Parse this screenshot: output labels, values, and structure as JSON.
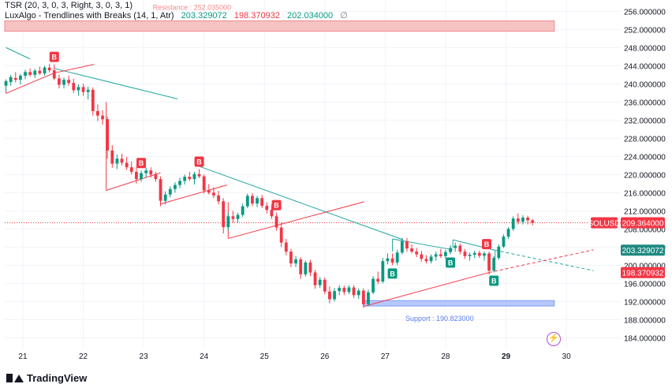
{
  "legend": {
    "tsr_name": "TSR (20, 3, 0, 3, Right, 3, 0, 3, 1)",
    "lux_name": "LuxAlgo - Trendlines with Breaks (14, 1, Atr)",
    "lux_v1": "203.329072",
    "lux_v2": "198.370932",
    "lux_v3": "202.034000",
    "lux_eps": "∅"
  },
  "brand": {
    "name": "TradingView"
  },
  "zones": {
    "resistance_label": "Resistance : 252.035000",
    "support_label": "Support : 190.823000"
  },
  "price_tags": {
    "symbol": "SOLUSD",
    "last": "209.364000",
    "upper_trend": "203.329072",
    "lower_trend": "198.370932"
  },
  "chart_data": {
    "type": "candlestick",
    "symbol": "SOLUSD",
    "x_ticks": [
      "21",
      "22",
      "23",
      "24",
      "25",
      "26",
      "27",
      "28",
      "29",
      "30"
    ],
    "y_ticks": [
      "256.000000",
      "252.000000",
      "248.000000",
      "244.000000",
      "240.000000",
      "236.000000",
      "232.000000",
      "228.000000",
      "224.000000",
      "220.000000",
      "216.000000",
      "212.000000",
      "208.000000",
      "204.000000",
      "200.000000",
      "196.000000",
      "192.000000",
      "188.000000",
      "184.000000"
    ],
    "ylim": [
      181.8,
      258.5
    ],
    "xlim": [
      20.7,
      30.9
    ],
    "last_price": 209.364,
    "resistance": {
      "low": 251.6,
      "high": 253.9,
      "value": 252.035
    },
    "support": {
      "low": 191.0,
      "high": 192.2,
      "value": 190.823
    },
    "candles": [
      {
        "d": 20.72,
        "o": 239.6,
        "h": 241.0,
        "l": 238.4,
        "c": 240.6
      },
      {
        "d": 20.8,
        "o": 240.4,
        "h": 242.0,
        "l": 239.6,
        "c": 241.5
      },
      {
        "d": 20.88,
        "o": 241.3,
        "h": 242.6,
        "l": 240.3,
        "c": 240.9
      },
      {
        "d": 20.96,
        "o": 240.9,
        "h": 242.2,
        "l": 239.9,
        "c": 241.8
      },
      {
        "d": 21.04,
        "o": 241.8,
        "h": 243.1,
        "l": 241.0,
        "c": 242.6
      },
      {
        "d": 21.12,
        "o": 242.6,
        "h": 243.4,
        "l": 241.6,
        "c": 242.0
      },
      {
        "d": 21.2,
        "o": 242.0,
        "h": 243.3,
        "l": 241.3,
        "c": 242.9
      },
      {
        "d": 21.28,
        "o": 242.9,
        "h": 243.8,
        "l": 242.0,
        "c": 242.3
      },
      {
        "d": 21.36,
        "o": 242.3,
        "h": 244.0,
        "l": 241.8,
        "c": 243.6
      },
      {
        "d": 21.44,
        "o": 243.6,
        "h": 244.4,
        "l": 242.5,
        "c": 243.0
      },
      {
        "d": 21.52,
        "o": 243.0,
        "h": 244.3,
        "l": 240.8,
        "c": 241.2
      },
      {
        "d": 21.6,
        "o": 241.2,
        "h": 242.0,
        "l": 239.0,
        "c": 239.8
      },
      {
        "d": 21.68,
        "o": 239.8,
        "h": 241.4,
        "l": 239.0,
        "c": 240.9
      },
      {
        "d": 21.76,
        "o": 240.9,
        "h": 241.8,
        "l": 239.6,
        "c": 240.2
      },
      {
        "d": 21.84,
        "o": 240.2,
        "h": 241.1,
        "l": 238.0,
        "c": 238.6
      },
      {
        "d": 21.92,
        "o": 238.6,
        "h": 239.9,
        "l": 237.4,
        "c": 239.3
      },
      {
        "d": 22.0,
        "o": 239.3,
        "h": 240.0,
        "l": 237.4,
        "c": 238.2
      },
      {
        "d": 22.08,
        "o": 238.2,
        "h": 239.4,
        "l": 236.6,
        "c": 238.7
      },
      {
        "d": 22.16,
        "o": 238.7,
        "h": 239.2,
        "l": 233.0,
        "c": 234.0
      },
      {
        "d": 22.24,
        "o": 234.0,
        "h": 235.5,
        "l": 231.8,
        "c": 233.0
      },
      {
        "d": 22.32,
        "o": 233.0,
        "h": 234.2,
        "l": 231.0,
        "c": 232.2
      },
      {
        "d": 22.4,
        "o": 232.2,
        "h": 232.8,
        "l": 223.5,
        "c": 225.3
      },
      {
        "d": 22.48,
        "o": 225.3,
        "h": 226.5,
        "l": 221.5,
        "c": 222.4
      },
      {
        "d": 22.56,
        "o": 222.4,
        "h": 224.4,
        "l": 221.2,
        "c": 223.5
      },
      {
        "d": 22.64,
        "o": 223.5,
        "h": 224.6,
        "l": 222.0,
        "c": 222.6
      },
      {
        "d": 22.72,
        "o": 222.6,
        "h": 223.9,
        "l": 221.0,
        "c": 221.6
      },
      {
        "d": 22.8,
        "o": 221.6,
        "h": 222.9,
        "l": 220.0,
        "c": 220.6
      },
      {
        "d": 22.88,
        "o": 220.6,
        "h": 221.6,
        "l": 218.0,
        "c": 219.0
      },
      {
        "d": 22.96,
        "o": 219.0,
        "h": 220.9,
        "l": 218.4,
        "c": 220.3
      },
      {
        "d": 23.04,
        "o": 220.3,
        "h": 221.5,
        "l": 219.4,
        "c": 220.9
      },
      {
        "d": 23.12,
        "o": 220.9,
        "h": 221.6,
        "l": 219.3,
        "c": 220.0
      },
      {
        "d": 23.2,
        "o": 220.0,
        "h": 220.6,
        "l": 218.4,
        "c": 219.0
      },
      {
        "d": 23.28,
        "o": 219.0,
        "h": 219.6,
        "l": 213.0,
        "c": 214.2
      },
      {
        "d": 23.36,
        "o": 214.2,
        "h": 216.3,
        "l": 213.4,
        "c": 215.6
      },
      {
        "d": 23.44,
        "o": 215.6,
        "h": 217.4,
        "l": 215.0,
        "c": 216.8
      },
      {
        "d": 23.52,
        "o": 216.8,
        "h": 218.3,
        "l": 216.0,
        "c": 217.7
      },
      {
        "d": 23.6,
        "o": 217.7,
        "h": 219.3,
        "l": 217.0,
        "c": 218.6
      },
      {
        "d": 23.68,
        "o": 218.6,
        "h": 220.0,
        "l": 217.8,
        "c": 219.5
      },
      {
        "d": 23.76,
        "o": 219.5,
        "h": 220.6,
        "l": 218.6,
        "c": 219.0
      },
      {
        "d": 23.84,
        "o": 219.0,
        "h": 220.6,
        "l": 217.8,
        "c": 220.1
      },
      {
        "d": 23.92,
        "o": 220.1,
        "h": 221.2,
        "l": 219.2,
        "c": 219.6
      },
      {
        "d": 24.0,
        "o": 219.6,
        "h": 220.0,
        "l": 215.8,
        "c": 216.5
      },
      {
        "d": 24.08,
        "o": 216.5,
        "h": 217.9,
        "l": 215.6,
        "c": 216.0
      },
      {
        "d": 24.16,
        "o": 216.0,
        "h": 217.2,
        "l": 214.8,
        "c": 215.4
      },
      {
        "d": 24.24,
        "o": 215.4,
        "h": 216.4,
        "l": 213.4,
        "c": 214.1
      },
      {
        "d": 24.32,
        "o": 214.1,
        "h": 214.8,
        "l": 207.0,
        "c": 208.4
      },
      {
        "d": 24.4,
        "o": 208.4,
        "h": 211.6,
        "l": 207.6,
        "c": 210.8
      },
      {
        "d": 24.48,
        "o": 210.8,
        "h": 212.0,
        "l": 209.4,
        "c": 210.2
      },
      {
        "d": 24.56,
        "o": 210.2,
        "h": 211.6,
        "l": 209.4,
        "c": 211.1
      },
      {
        "d": 24.64,
        "o": 211.1,
        "h": 213.6,
        "l": 210.6,
        "c": 213.0
      },
      {
        "d": 24.72,
        "o": 213.0,
        "h": 215.8,
        "l": 212.6,
        "c": 215.3
      },
      {
        "d": 24.8,
        "o": 215.3,
        "h": 215.9,
        "l": 213.0,
        "c": 213.6
      },
      {
        "d": 24.88,
        "o": 213.6,
        "h": 215.3,
        "l": 212.8,
        "c": 214.8
      },
      {
        "d": 24.96,
        "o": 214.8,
        "h": 215.5,
        "l": 212.6,
        "c": 213.1
      },
      {
        "d": 25.04,
        "o": 213.1,
        "h": 213.9,
        "l": 211.4,
        "c": 212.2
      },
      {
        "d": 25.12,
        "o": 212.2,
        "h": 213.4,
        "l": 210.2,
        "c": 210.8
      },
      {
        "d": 25.2,
        "o": 210.8,
        "h": 211.6,
        "l": 207.6,
        "c": 208.3
      },
      {
        "d": 25.28,
        "o": 208.3,
        "h": 209.4,
        "l": 204.0,
        "c": 205.0
      },
      {
        "d": 25.36,
        "o": 205.0,
        "h": 205.8,
        "l": 202.2,
        "c": 203.0
      },
      {
        "d": 25.44,
        "o": 203.0,
        "h": 203.6,
        "l": 199.6,
        "c": 200.4
      },
      {
        "d": 25.52,
        "o": 200.4,
        "h": 202.0,
        "l": 199.6,
        "c": 201.3
      },
      {
        "d": 25.6,
        "o": 201.3,
        "h": 201.8,
        "l": 197.0,
        "c": 198.0
      },
      {
        "d": 25.68,
        "o": 198.0,
        "h": 201.0,
        "l": 197.5,
        "c": 200.6
      },
      {
        "d": 25.76,
        "o": 200.6,
        "h": 201.2,
        "l": 197.6,
        "c": 198.4
      },
      {
        "d": 25.84,
        "o": 198.4,
        "h": 199.0,
        "l": 194.8,
        "c": 195.6
      },
      {
        "d": 25.92,
        "o": 195.6,
        "h": 197.4,
        "l": 195.0,
        "c": 196.8
      },
      {
        "d": 26.0,
        "o": 196.8,
        "h": 197.3,
        "l": 193.6,
        "c": 194.2
      },
      {
        "d": 26.08,
        "o": 194.2,
        "h": 195.3,
        "l": 191.6,
        "c": 192.5
      },
      {
        "d": 26.16,
        "o": 192.5,
        "h": 195.0,
        "l": 192.0,
        "c": 194.3
      },
      {
        "d": 26.24,
        "o": 194.3,
        "h": 195.6,
        "l": 193.4,
        "c": 195.0
      },
      {
        "d": 26.32,
        "o": 195.0,
        "h": 195.5,
        "l": 193.4,
        "c": 194.1
      },
      {
        "d": 26.4,
        "o": 194.1,
        "h": 195.6,
        "l": 193.6,
        "c": 195.1
      },
      {
        "d": 26.48,
        "o": 195.1,
        "h": 195.6,
        "l": 192.8,
        "c": 193.4
      },
      {
        "d": 26.56,
        "o": 193.4,
        "h": 194.9,
        "l": 192.6,
        "c": 194.4
      },
      {
        "d": 26.64,
        "o": 194.4,
        "h": 194.9,
        "l": 190.6,
        "c": 191.4
      },
      {
        "d": 26.72,
        "o": 191.4,
        "h": 194.6,
        "l": 191.0,
        "c": 194.0
      },
      {
        "d": 26.8,
        "o": 194.0,
        "h": 197.6,
        "l": 193.6,
        "c": 197.0
      },
      {
        "d": 26.88,
        "o": 197.0,
        "h": 198.6,
        "l": 195.8,
        "c": 196.4
      },
      {
        "d": 26.96,
        "o": 196.4,
        "h": 201.6,
        "l": 196.0,
        "c": 200.9
      },
      {
        "d": 27.04,
        "o": 200.9,
        "h": 202.6,
        "l": 200.2,
        "c": 201.5
      },
      {
        "d": 27.12,
        "o": 201.5,
        "h": 202.6,
        "l": 200.0,
        "c": 200.6
      },
      {
        "d": 27.2,
        "o": 200.6,
        "h": 203.4,
        "l": 200.0,
        "c": 202.8
      },
      {
        "d": 27.28,
        "o": 202.8,
        "h": 206.0,
        "l": 202.4,
        "c": 205.3
      },
      {
        "d": 27.36,
        "o": 205.3,
        "h": 206.0,
        "l": 203.0,
        "c": 203.7
      },
      {
        "d": 27.44,
        "o": 203.7,
        "h": 204.6,
        "l": 202.6,
        "c": 203.0
      },
      {
        "d": 27.52,
        "o": 203.0,
        "h": 203.8,
        "l": 201.8,
        "c": 202.4
      },
      {
        "d": 27.6,
        "o": 202.4,
        "h": 203.2,
        "l": 200.8,
        "c": 201.4
      },
      {
        "d": 27.68,
        "o": 201.4,
        "h": 202.2,
        "l": 200.4,
        "c": 200.9
      },
      {
        "d": 27.76,
        "o": 200.9,
        "h": 202.4,
        "l": 200.4,
        "c": 201.9
      },
      {
        "d": 27.84,
        "o": 201.9,
        "h": 203.0,
        "l": 201.0,
        "c": 202.4
      },
      {
        "d": 27.92,
        "o": 202.4,
        "h": 203.6,
        "l": 201.6,
        "c": 202.0
      },
      {
        "d": 28.0,
        "o": 202.0,
        "h": 203.4,
        "l": 201.4,
        "c": 202.9
      },
      {
        "d": 28.08,
        "o": 202.9,
        "h": 204.4,
        "l": 202.4,
        "c": 203.8
      },
      {
        "d": 28.16,
        "o": 203.8,
        "h": 205.0,
        "l": 203.0,
        "c": 204.3
      },
      {
        "d": 28.24,
        "o": 204.3,
        "h": 204.8,
        "l": 202.4,
        "c": 203.0
      },
      {
        "d": 28.32,
        "o": 203.0,
        "h": 203.6,
        "l": 201.4,
        "c": 202.0
      },
      {
        "d": 28.4,
        "o": 202.0,
        "h": 202.8,
        "l": 201.0,
        "c": 202.3
      },
      {
        "d": 28.48,
        "o": 202.3,
        "h": 203.2,
        "l": 201.6,
        "c": 202.7
      },
      {
        "d": 28.56,
        "o": 202.7,
        "h": 203.2,
        "l": 201.6,
        "c": 202.1
      },
      {
        "d": 28.64,
        "o": 202.1,
        "h": 203.0,
        "l": 201.0,
        "c": 202.6
      },
      {
        "d": 28.72,
        "o": 202.6,
        "h": 203.0,
        "l": 198.0,
        "c": 198.8
      },
      {
        "d": 28.8,
        "o": 198.8,
        "h": 202.0,
        "l": 198.4,
        "c": 201.6
      },
      {
        "d": 28.88,
        "o": 201.6,
        "h": 204.6,
        "l": 201.2,
        "c": 204.1
      },
      {
        "d": 28.96,
        "o": 204.1,
        "h": 206.8,
        "l": 203.8,
        "c": 206.3
      },
      {
        "d": 29.04,
        "o": 206.3,
        "h": 208.4,
        "l": 205.8,
        "c": 208.0
      },
      {
        "d": 29.12,
        "o": 208.0,
        "h": 210.8,
        "l": 207.6,
        "c": 210.3
      },
      {
        "d": 29.2,
        "o": 210.3,
        "h": 211.4,
        "l": 209.0,
        "c": 209.6
      },
      {
        "d": 29.28,
        "o": 209.6,
        "h": 211.0,
        "l": 209.0,
        "c": 210.5
      },
      {
        "d": 29.36,
        "o": 210.5,
        "h": 210.9,
        "l": 209.0,
        "c": 209.9
      },
      {
        "d": 29.44,
        "o": 209.9,
        "h": 210.2,
        "l": 208.8,
        "c": 209.36
      }
    ],
    "break_labels": [
      {
        "d": 21.52,
        "price": 244.3,
        "text": "B",
        "kind": "bear"
      },
      {
        "d": 22.96,
        "price": 220.9,
        "text": "B",
        "kind": "bear"
      },
      {
        "d": 23.92,
        "price": 221.2,
        "text": "B",
        "kind": "bear"
      },
      {
        "d": 25.2,
        "price": 211.6,
        "text": "B",
        "kind": "bear"
      },
      {
        "d": 28.68,
        "price": 203.0,
        "text": "B",
        "kind": "bear"
      },
      {
        "d": 27.12,
        "price": 200.0,
        "text": "B",
        "kind": "bull"
      },
      {
        "d": 28.08,
        "price": 202.4,
        "text": "B",
        "kind": "bull"
      },
      {
        "d": 28.8,
        "price": 198.4,
        "text": "B",
        "kind": "bull"
      }
    ],
    "trendlines": [
      {
        "kind": "down",
        "pts": [
          [
            20.72,
            248.0
          ],
          [
            21.12,
            245.5
          ]
        ]
      },
      {
        "kind": "down",
        "pts": [
          [
            21.52,
            243.4
          ],
          [
            23.56,
            236.7
          ]
        ]
      },
      {
        "kind": "down",
        "pts": [
          [
            23.88,
            222.0
          ],
          [
            27.3,
            205.6
          ]
        ]
      },
      {
        "kind": "down",
        "pts": [
          [
            27.12,
            205.8
          ],
          [
            28.12,
            203.4
          ]
        ]
      },
      {
        "kind": "down",
        "pts": [
          [
            28.12,
            205.6
          ],
          [
            28.82,
            203.3
          ]
        ]
      },
      {
        "kind": "down",
        "pts": [
          [
            28.82,
            203.3
          ],
          [
            30.45,
            198.8
          ]
        ],
        "dashed": true
      },
      {
        "kind": "up",
        "pts": [
          [
            20.72,
            237.9
          ],
          [
            21.52,
            242.4
          ]
        ]
      },
      {
        "kind": "up",
        "pts": [
          [
            21.52,
            242.4
          ],
          [
            22.18,
            244.3
          ]
        ]
      },
      {
        "kind": "up",
        "pts": [
          [
            22.38,
            216.5
          ],
          [
            23.28,
            220.4
          ]
        ]
      },
      {
        "kind": "up",
        "pts": [
          [
            23.28,
            213.5
          ],
          [
            24.38,
            217.7
          ]
        ]
      },
      {
        "kind": "up",
        "pts": [
          [
            24.4,
            205.9
          ],
          [
            26.65,
            214.0
          ]
        ]
      },
      {
        "kind": "up",
        "pts": [
          [
            26.64,
            190.9
          ],
          [
            28.72,
            198.4
          ]
        ]
      },
      {
        "kind": "up",
        "pts": [
          [
            28.72,
            198.4
          ],
          [
            30.45,
            203.4
          ]
        ],
        "dashed": true
      }
    ],
    "vlines": [
      {
        "kind": "bear",
        "pts": [
          [
            22.38,
            236.0
          ],
          [
            22.38,
            216.5
          ]
        ]
      },
      {
        "kind": "bear",
        "pts": [
          [
            23.28,
            219.0
          ],
          [
            23.28,
            213.5
          ]
        ]
      },
      {
        "kind": "bear",
        "pts": [
          [
            24.4,
            213.9
          ],
          [
            24.4,
            205.9
          ]
        ]
      },
      {
        "kind": "bear",
        "pts": [
          [
            20.72,
            239.0
          ],
          [
            20.72,
            237.9
          ]
        ]
      },
      {
        "kind": "bull",
        "pts": [
          [
            27.12,
            203.0
          ],
          [
            27.12,
            205.8
          ]
        ]
      },
      {
        "kind": "bull",
        "pts": [
          [
            28.12,
            203.9
          ],
          [
            28.12,
            205.6
          ]
        ]
      },
      {
        "kind": "bull",
        "pts": [
          [
            28.82,
            201.3
          ],
          [
            28.82,
            203.3
          ]
        ]
      }
    ],
    "grid": true,
    "colors": {
      "up": "#089981",
      "down": "#f23645",
      "teal_line": "#22a6a0",
      "red_line": "#f23645",
      "resistance_fill": "#f6c3c3",
      "resistance_edge": "#f08a8a",
      "support_fill": "#b6c7fb",
      "support_edge": "#7f9df5",
      "last_price": "#f23645",
      "upper_tag": "#1f8a80",
      "lower_tag": "#f23645"
    }
  }
}
